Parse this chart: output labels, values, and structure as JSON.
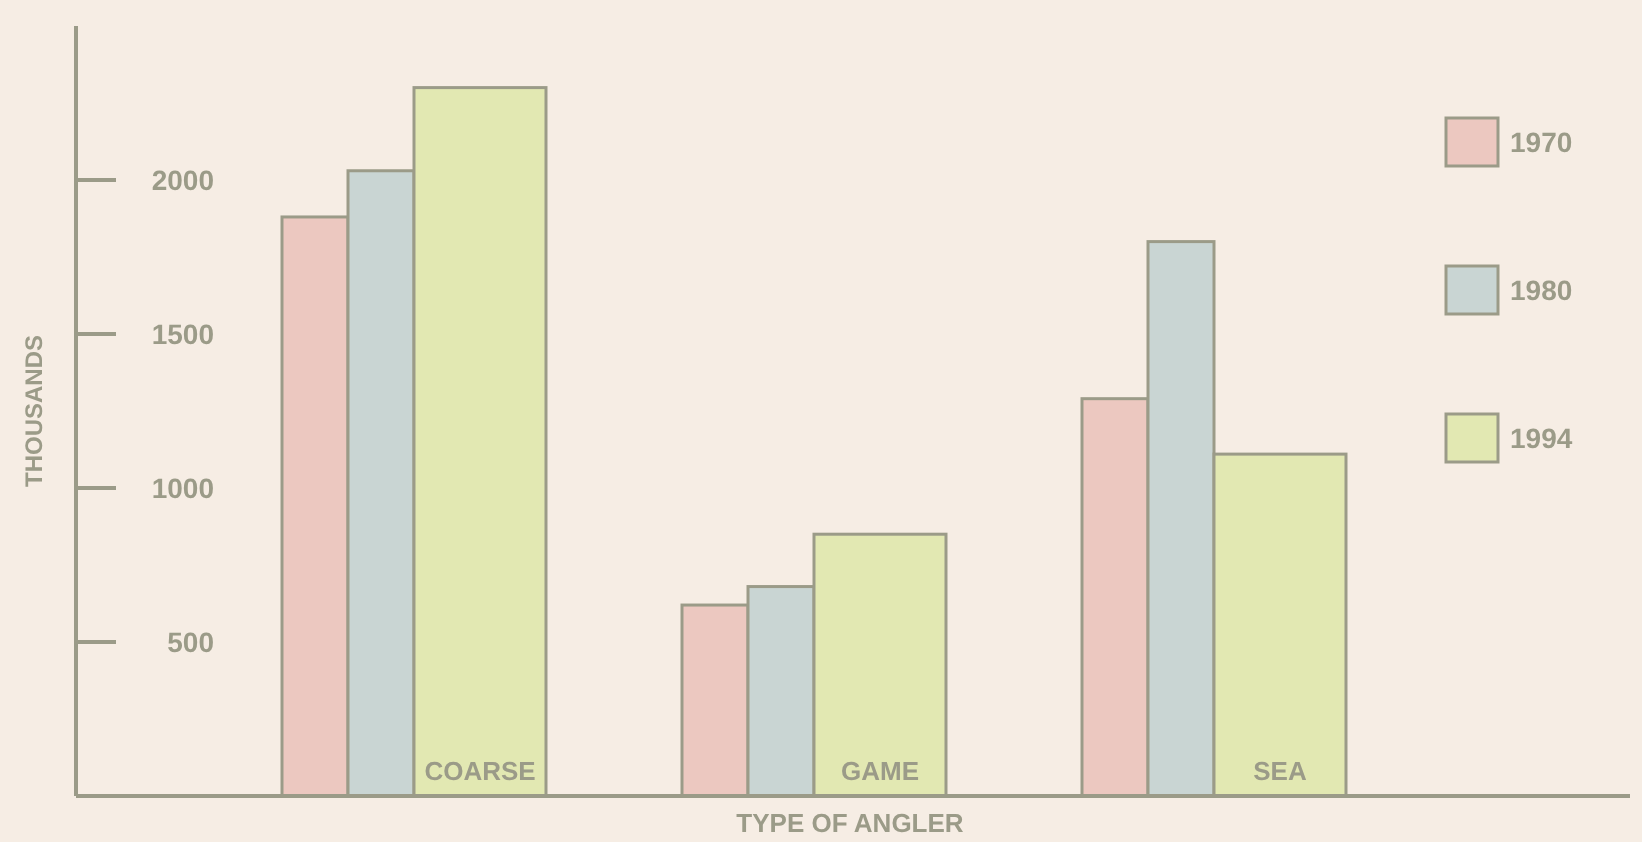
{
  "chart_data": {
    "type": "bar",
    "xlabel": "TYPE OF ANGLER",
    "ylabel": "THOUSANDS",
    "categories": [
      "COARSE",
      "GAME",
      "SEA"
    ],
    "series": [
      {
        "name": "1970",
        "color": "#ecc8c0",
        "values": [
          1880,
          620,
          1290
        ]
      },
      {
        "name": "1980",
        "color": "#c9d5d3",
        "values": [
          2030,
          680,
          1800
        ]
      },
      {
        "name": "1994",
        "color": "#e2e8b2",
        "values": [
          2300,
          850,
          1110
        ]
      }
    ],
    "ylim": [
      0,
      2500
    ],
    "yticks": [
      500,
      1000,
      1500,
      2000
    ],
    "grid": false,
    "legend": "top right"
  }
}
